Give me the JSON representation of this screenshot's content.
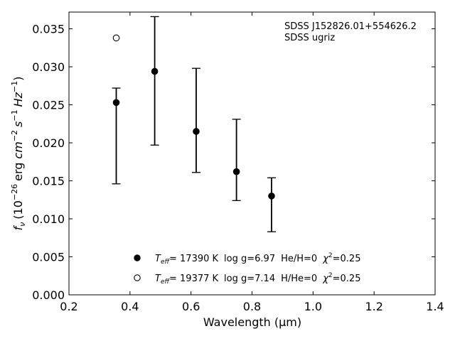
{
  "chart_data": {
    "type": "scatter",
    "title": "",
    "xlabel": "Wavelength (μm)",
    "ylabel_parts": {
      "f_nu": "f",
      "nu": "ν",
      "units_open": "(10",
      "exp": "−26",
      "erg": "erg",
      "cm": "cm",
      "cm_exp": "−2",
      "s": "s",
      "s_exp": "−1",
      "hz": "Hz",
      "hz_exp": "−1",
      "close": ")"
    },
    "xlim": [
      0.2,
      1.4
    ],
    "ylim": [
      0.0,
      0.0372
    ],
    "x_ticks": [
      0.2,
      0.4,
      0.6,
      0.8,
      1.0,
      1.2,
      1.4
    ],
    "x_tick_labels": [
      "0.2",
      "0.4",
      "0.6",
      "0.8",
      "1.0",
      "1.2",
      "1.4"
    ],
    "y_ticks": [
      0.0,
      0.005,
      0.01,
      0.015,
      0.02,
      0.025,
      0.03,
      0.035
    ],
    "y_tick_labels": [
      "0.000",
      "0.005",
      "0.010",
      "0.015",
      "0.020",
      "0.025",
      "0.030",
      "0.035"
    ],
    "grid": false,
    "annotation": {
      "line1": "SDSS J152826.01+554626.2",
      "line2": "SDSS ugriz"
    },
    "series": [
      {
        "name": "Teff=17390 K log g=6.97 He/H=0",
        "marker": "filled-circle",
        "points": [
          {
            "x": 0.355,
            "y": 0.0253,
            "ylow": 0.0146,
            "yhigh": 0.0272
          },
          {
            "x": 0.481,
            "y": 0.0294,
            "ylow": 0.0197,
            "yhigh": 0.0366
          },
          {
            "x": 0.617,
            "y": 0.0215,
            "ylow": 0.0161,
            "yhigh": 0.0298
          },
          {
            "x": 0.749,
            "y": 0.0162,
            "ylow": 0.0124,
            "yhigh": 0.0231
          },
          {
            "x": 0.864,
            "y": 0.013,
            "ylow": 0.0083,
            "yhigh": 0.0154
          }
        ]
      },
      {
        "name": "Teff=19377 K log g=7.14 H/He=0",
        "marker": "open-circle",
        "points": [
          {
            "x": 0.355,
            "y": 0.0338
          }
        ]
      }
    ],
    "legend": {
      "placement": "lower-center",
      "entries": [
        {
          "marker": "filled-circle",
          "T": "T",
          "eff": "eff",
          "temp": "= 17390 K",
          "logg": "log g=6.97",
          "comp": "He/H=0",
          "chi": "χ",
          "chi_exp": "2",
          "chi_val": "=0.25"
        },
        {
          "marker": "open-circle",
          "T": "T",
          "eff": "eff",
          "temp": "= 19377 K",
          "logg": "log g=7.14",
          "comp": "H/He=0",
          "chi": "χ",
          "chi_exp": "2",
          "chi_val": "=0.25"
        }
      ]
    }
  }
}
